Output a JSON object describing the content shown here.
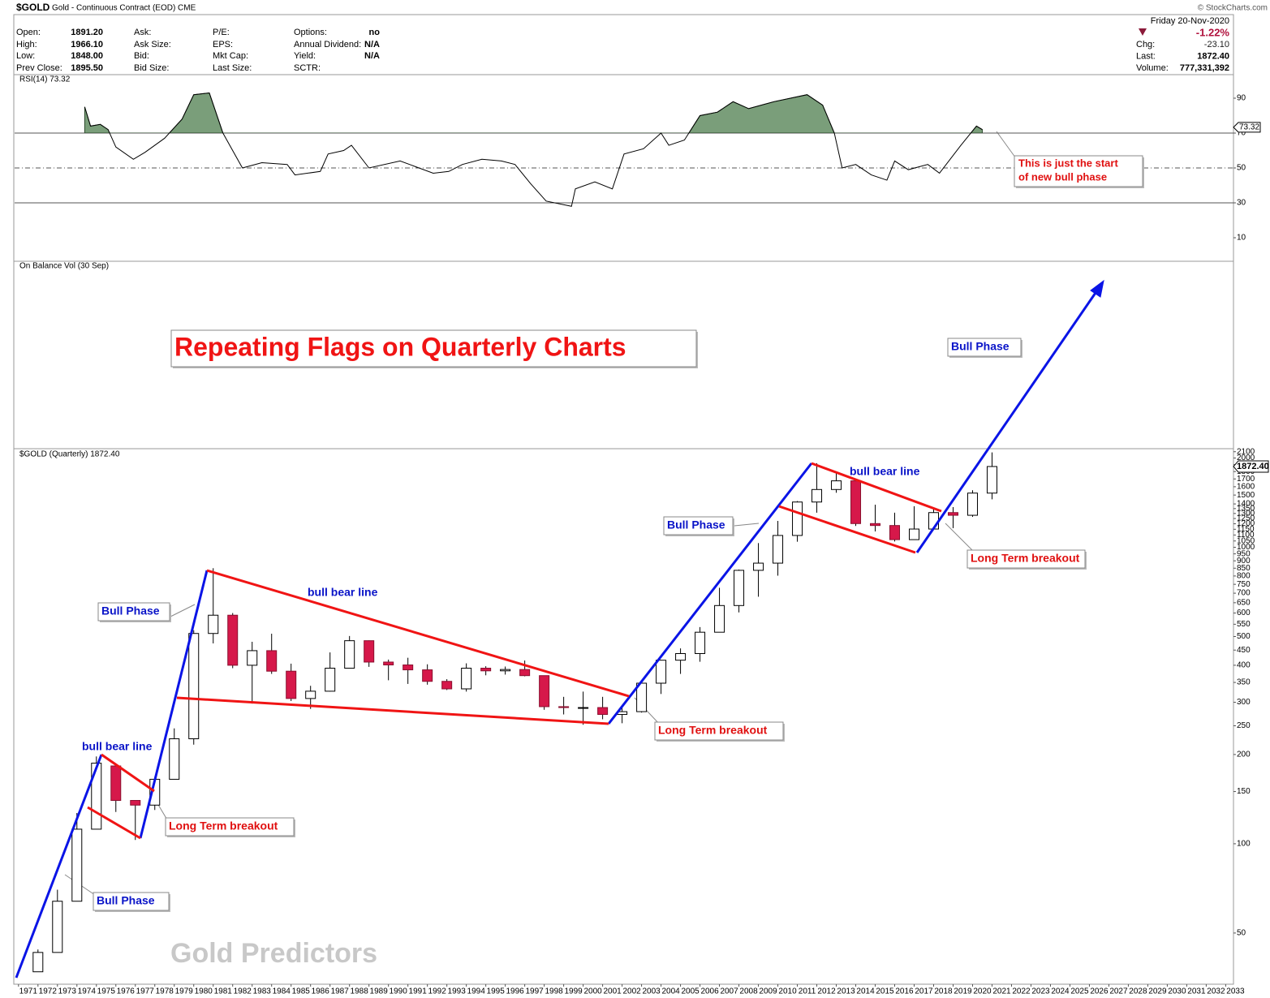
{
  "header": {
    "symbol": "$GOLD",
    "name": "Gold - Continuous Contract (EOD) CME",
    "source": "© StockCharts.com",
    "date": "Friday  20-Nov-2020",
    "change_pct": "-1.22%",
    "fields": [
      [
        [
          "Open:",
          "1891.20"
        ],
        [
          "High:",
          "1966.10"
        ],
        [
          "Low:",
          "1848.00"
        ],
        [
          "Prev Close:",
          "1895.50"
        ]
      ],
      [
        [
          "Ask:"
        ],
        [
          "Ask Size:"
        ],
        [
          "Bid:"
        ],
        [
          "Bid Size:"
        ]
      ],
      [
        [
          "P/E:"
        ],
        [
          "EPS:"
        ],
        [
          "Mkt Cap:"
        ],
        [
          "Last Size:"
        ]
      ],
      [
        [
          "Options:",
          "no"
        ],
        [
          "Annual Dividend:",
          "N/A"
        ],
        [
          "Yield:",
          "N/A"
        ],
        [
          "SCTR:"
        ]
      ]
    ],
    "quote": [
      [
        "Chg:",
        "-23.10"
      ],
      [
        "Last:",
        "1872.40"
      ],
      [
        "Volume:",
        "777,331,392"
      ]
    ]
  },
  "chart_data": [
    {
      "type": "line",
      "title": "RSI(14) 73.32",
      "last_value": 73.32,
      "color": "#000000",
      "fill_color": "#7a9e7a",
      "fill_above": 70,
      "xlim": [
        1970.3,
        2032.9
      ],
      "ylim": [
        0,
        100
      ],
      "yticks": [
        10,
        30,
        50,
        70,
        90
      ],
      "x": [
        1973.9,
        1974.2,
        1974.7,
        1975.1,
        1975.5,
        1976.4,
        1977.0,
        1978.0,
        1978.9,
        1979.5,
        1980.3,
        1981.0,
        1981.4,
        1982.0,
        1983.0,
        1984.3,
        1984.7,
        1986.0,
        1986.4,
        1987.2,
        1987.6,
        1988.5,
        1990.1,
        1991.8,
        1992.6,
        1993.3,
        1994.3,
        1995.3,
        1996.0,
        1996.8,
        1997.6,
        1998.9,
        1999.1,
        2000.1,
        2001.0,
        2001.6,
        2002.6,
        2003.5,
        2003.9,
        2004.7,
        2005.5,
        2006.4,
        2007.2,
        2008.0,
        2009.3,
        2011.0,
        2011.8,
        2012.4,
        2012.8,
        2013.5,
        2014.3,
        2015.1,
        2015.5,
        2016.2,
        2017.2,
        2017.8,
        2018.9,
        2019.7,
        2020.0
      ],
      "values": [
        85,
        74,
        75,
        72,
        62,
        55,
        59,
        67,
        78,
        92,
        93,
        70,
        62,
        50,
        53,
        52,
        46,
        48,
        58,
        60,
        63,
        50,
        54,
        47,
        48,
        52,
        55,
        54,
        52,
        41,
        31,
        28,
        38,
        42,
        38,
        58,
        61,
        70,
        63,
        66,
        80,
        82,
        88,
        84,
        88,
        92,
        86,
        70,
        50,
        52,
        46,
        43,
        54,
        49,
        52,
        47,
        63,
        74,
        72
      ]
    },
    {
      "type": "candlestick",
      "title": "$GOLD (Quarterly) 1872.40",
      "subtitle": "On Balance Vol (30 Sep)",
      "last": {
        "value": 1872.4,
        "label": "1872.40"
      },
      "log_scale": true,
      "up_color": "#ffffff",
      "down_color": "#d6184a",
      "xlim": [
        1970.3,
        2032.9
      ],
      "ylim": [
        33.6,
        2150
      ],
      "yticks": [
        50,
        100,
        150,
        200,
        250,
        300,
        350,
        400,
        450,
        500,
        550,
        600,
        650,
        700,
        750,
        800,
        850,
        900,
        950,
        1000,
        1050,
        1100,
        1150,
        1200,
        1250,
        1300,
        1350,
        1400,
        1500,
        1600,
        1700,
        1800,
        1900,
        2000,
        2100
      ],
      "xticks": [
        1971,
        1972,
        1973,
        1974,
        1975,
        1976,
        1977,
        1978,
        1979,
        1980,
        1981,
        1982,
        1983,
        1984,
        1985,
        1986,
        1987,
        1988,
        1989,
        1990,
        1991,
        1992,
        1993,
        1994,
        1995,
        1996,
        1997,
        1998,
        1999,
        2000,
        2001,
        2002,
        2003,
        2004,
        2005,
        2006,
        2007,
        2008,
        2009,
        2010,
        2011,
        2012,
        2013,
        2014,
        2015,
        2016,
        2017,
        2018,
        2019,
        2020,
        2021,
        2022,
        2023,
        2024,
        2025,
        2026,
        2027,
        2028,
        2029,
        2030,
        2031,
        2032,
        2033
      ],
      "x": [
        1971,
        1972,
        1973,
        1974,
        1975,
        1976,
        1977,
        1978,
        1979,
        1980,
        1981,
        1982,
        1983,
        1984,
        1985,
        1986,
        1987,
        1988,
        1989,
        1990,
        1991,
        1992,
        1993,
        1994,
        1995,
        1996,
        1997,
        1998,
        1999,
        2000,
        2001,
        2002,
        2003,
        2004,
        2005,
        2006,
        2007,
        2008,
        2009,
        2010,
        2011,
        2012,
        2013,
        2014,
        2015,
        2016,
        2017,
        2018,
        2019,
        2020
      ],
      "open": [
        37,
        43,
        64,
        112,
        183,
        140,
        135,
        165,
        226,
        512,
        590,
        400,
        448,
        382,
        309,
        327,
        391,
        484,
        410,
        401,
        386,
        353,
        333,
        391,
        383,
        387,
        369,
        290,
        288,
        288,
        273,
        279,
        348,
        416,
        438,
        517,
        636,
        836,
        884,
        1096,
        1421,
        1566,
        1675,
        1202,
        1184,
        1061,
        1152,
        1309,
        1282,
        1523
      ],
      "high": [
        44,
        70,
        127,
        197,
        186,
        140,
        168,
        245,
        525,
        850,
        600,
        480,
        511,
        405,
        341,
        442,
        502,
        485,
        418,
        424,
        403,
        359,
        406,
        397,
        396,
        415,
        367,
        313,
        326,
        313,
        293,
        349,
        417,
        456,
        538,
        730,
        841,
        1033,
        1227,
        1431,
        1921,
        1796,
        1696,
        1392,
        1308,
        1375,
        1358,
        1366,
        1557,
        2089
      ],
      "low": [
        37,
        43,
        64,
        112,
        128,
        103,
        130,
        165,
        216,
        474,
        391,
        297,
        374,
        303,
        285,
        326,
        391,
        395,
        356,
        346,
        344,
        330,
        326,
        370,
        372,
        367,
        283,
        273,
        252,
        263,
        255,
        277,
        320,
        374,
        411,
        516,
        603,
        681,
        802,
        1044,
        1308,
        1527,
        1180,
        1131,
        1046,
        1061,
        1147,
        1160,
        1266,
        1451
      ],
      "close": [
        43,
        64,
        112,
        187,
        140,
        135,
        165,
        226,
        512,
        590,
        400,
        448,
        382,
        309,
        327,
        391,
        484,
        410,
        401,
        386,
        353,
        333,
        391,
        383,
        387,
        369,
        290,
        288,
        288,
        273,
        279,
        348,
        416,
        438,
        517,
        636,
        836,
        884,
        1096,
        1421,
        1566,
        1675,
        1202,
        1184,
        1061,
        1152,
        1309,
        1282,
        1523,
        1872
      ],
      "annotations": [
        "Repeating Flags on Quarterly Charts",
        "Bull Phase",
        "Bull Phase",
        "Bull Phase",
        "Bull Phase",
        "bull bear line",
        "bull bear line",
        "bull bear line",
        "Long Term breakout",
        "Long Term breakout",
        "Long Term breakout",
        "This is just the start",
        "of new bull phase",
        "Gold Predictors"
      ]
    }
  ]
}
